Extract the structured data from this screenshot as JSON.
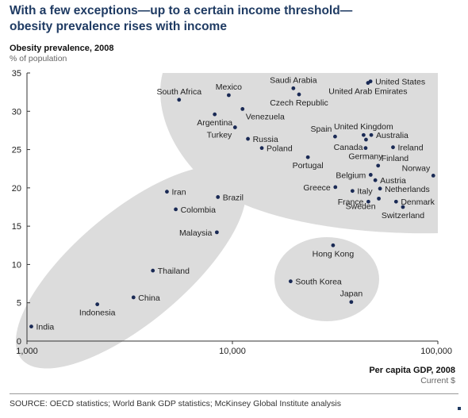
{
  "title_lines": [
    "With a few exceptions—up to a certain income threshold—",
    "obesity prevalence rises with income"
  ],
  "source": "SOURCE: OECD statistics; World Bank GDP statistics; McKinsey Global Institute analysis",
  "colors": {
    "title": "#1f3b63",
    "point": "#1a2a55",
    "cluster_fill": "#dcdcdc"
  },
  "chart_data": {
    "type": "scatter",
    "ylabel": "Obesity prevalence, 2008",
    "yunit": "% of population",
    "xlabel": "Per capita GDP, 2008",
    "xunit": "Current $",
    "x_scale": "log",
    "xlim": [
      1000,
      100000
    ],
    "ylim": [
      0,
      35
    ],
    "x_ticks": [
      1000,
      10000,
      100000
    ],
    "x_tick_labels": [
      "1,000",
      "10,000",
      "100,000"
    ],
    "y_ticks": [
      0,
      5,
      10,
      15,
      20,
      25,
      30,
      35
    ],
    "y_tick_labels": [
      "0",
      "5",
      "10",
      "15",
      "20",
      "25",
      "30",
      "35"
    ],
    "grid": false,
    "points": [
      {
        "label": "India",
        "x": 1050,
        "y": 1.9,
        "pos": "right"
      },
      {
        "label": "Indonesia",
        "x": 2200,
        "y": 4.8,
        "pos": "below"
      },
      {
        "label": "China",
        "x": 3300,
        "y": 5.7,
        "pos": "right"
      },
      {
        "label": "Thailand",
        "x": 4100,
        "y": 9.2,
        "pos": "right"
      },
      {
        "label": "Iran",
        "x": 4800,
        "y": 19.5,
        "pos": "right"
      },
      {
        "label": "Colombia",
        "x": 5300,
        "y": 17.2,
        "pos": "right"
      },
      {
        "label": "Brazil",
        "x": 8500,
        "y": 18.8,
        "pos": "right"
      },
      {
        "label": "Malaysia",
        "x": 8400,
        "y": 14.2,
        "pos": "left"
      },
      {
        "label": "South Africa",
        "x": 5500,
        "y": 31.5,
        "pos": "above"
      },
      {
        "label": "Mexico",
        "x": 9600,
        "y": 32.1,
        "pos": "above"
      },
      {
        "label": "Argentina",
        "x": 8200,
        "y": 29.6,
        "pos": "below"
      },
      {
        "label": "Venezuela",
        "x": 11200,
        "y": 30.3,
        "pos": "below-right"
      },
      {
        "label": "Turkey",
        "x": 10300,
        "y": 27.9,
        "pos": "below-left"
      },
      {
        "label": "Russia",
        "x": 11900,
        "y": 26.4,
        "pos": "right"
      },
      {
        "label": "Poland",
        "x": 13900,
        "y": 25.2,
        "pos": "right"
      },
      {
        "label": "Saudi Arabia",
        "x": 19800,
        "y": 33.0,
        "pos": "above"
      },
      {
        "label": "Czech Republic",
        "x": 21100,
        "y": 32.2,
        "pos": "below"
      },
      {
        "label": "Portugal",
        "x": 23300,
        "y": 24.0,
        "pos": "below"
      },
      {
        "label": "United States",
        "x": 47000,
        "y": 33.9,
        "pos": "right"
      },
      {
        "label": "United Arab Emirates",
        "x": 45700,
        "y": 33.7,
        "pos": "below"
      },
      {
        "label": "United Kingdom",
        "x": 43500,
        "y": 26.9,
        "pos": "above"
      },
      {
        "label": "Spain",
        "x": 31600,
        "y": 26.7,
        "pos": "above-left"
      },
      {
        "label": "Australia",
        "x": 47400,
        "y": 26.9,
        "pos": "right"
      },
      {
        "label": "Canada",
        "x": 44700,
        "y": 26.3,
        "pos": "below-left"
      },
      {
        "label": "Ireland",
        "x": 60500,
        "y": 25.3,
        "pos": "right"
      },
      {
        "label": "Germany",
        "x": 44500,
        "y": 25.2,
        "pos": "below"
      },
      {
        "label": "Finland",
        "x": 51200,
        "y": 22.9,
        "pos": "above-right"
      },
      {
        "label": "Norway",
        "x": 95000,
        "y": 21.6,
        "pos": "above-left"
      },
      {
        "label": "Belgium",
        "x": 47100,
        "y": 21.7,
        "pos": "left"
      },
      {
        "label": "Austria",
        "x": 49600,
        "y": 21.0,
        "pos": "right"
      },
      {
        "label": "Greece",
        "x": 31700,
        "y": 20.1,
        "pos": "left"
      },
      {
        "label": "Italy",
        "x": 38400,
        "y": 19.6,
        "pos": "right"
      },
      {
        "label": "Netherlands",
        "x": 52300,
        "y": 19.9,
        "pos": "right"
      },
      {
        "label": "France",
        "x": 45900,
        "y": 18.2,
        "pos": "left"
      },
      {
        "label": "Denmark",
        "x": 62600,
        "y": 18.2,
        "pos": "right"
      },
      {
        "label": "Sweden",
        "x": 51600,
        "y": 18.6,
        "pos": "below-left"
      },
      {
        "label": "Switzerland",
        "x": 67600,
        "y": 17.5,
        "pos": "below"
      },
      {
        "label": "Hong Kong",
        "x": 30900,
        "y": 12.5,
        "pos": "below"
      },
      {
        "label": "South Korea",
        "x": 19200,
        "y": 7.8,
        "pos": "right"
      },
      {
        "label": "Japan",
        "x": 37900,
        "y": 5.1,
        "pos": "above"
      }
    ]
  }
}
